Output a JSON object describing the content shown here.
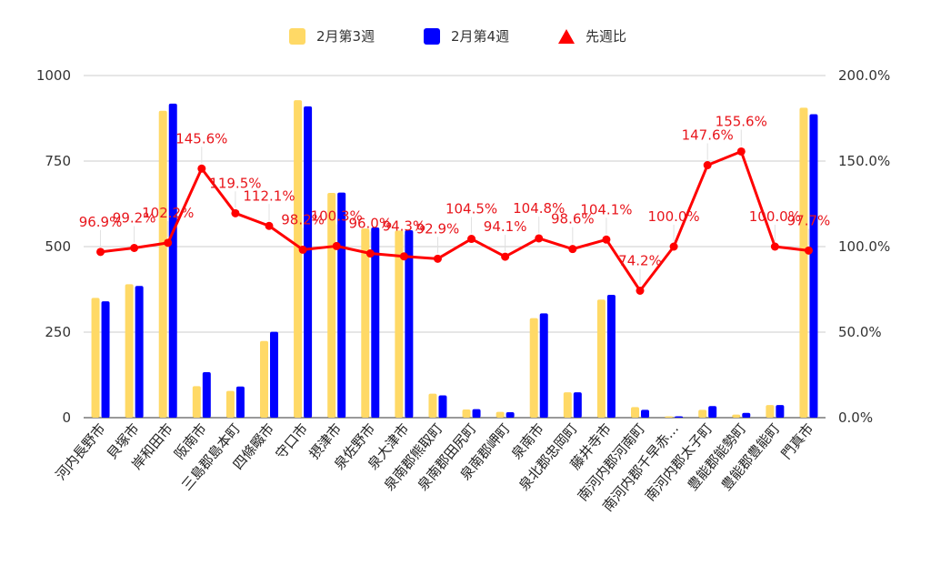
{
  "chart_data": {
    "type": "bar",
    "categories": [
      "河内長野市",
      "貝塚市",
      "岸和田市",
      "阪南市",
      "三島郡島本町",
      "四條畷市",
      "守口市",
      "摂津市",
      "泉佐野市",
      "泉大津市",
      "泉南郡熊取町",
      "泉南郡田尻町",
      "泉南郡岬町",
      "泉南市",
      "泉北郡忠岡町",
      "藤井寺市",
      "南河内郡河南町",
      "南河内郡千早赤…",
      "南河内郡太子町",
      "豊能郡能勢町",
      "豊能郡豊能町",
      "門真市"
    ],
    "series": [
      {
        "name": "2月第3週",
        "axis": "left",
        "color": "#ffd966",
        "values": [
          350,
          390,
          897,
          92,
          78,
          224,
          928,
          657,
          553,
          547,
          70,
          24,
          17,
          291,
          74,
          345,
          31,
          4,
          23,
          9,
          37,
          906
        ]
      },
      {
        "name": "2月第4週",
        "axis": "left",
        "color": "#0000ff",
        "values": [
          340,
          385,
          918,
          133,
          91,
          251,
          910,
          658,
          556,
          548,
          65,
          25,
          16,
          305,
          74,
          359,
          23,
          4,
          34,
          14,
          37,
          887
        ]
      },
      {
        "name": "先週比",
        "axis": "right",
        "type": "line",
        "color": "#ff0000",
        "values": [
          96.9,
          99.2,
          102.2,
          145.6,
          119.5,
          112.1,
          98.2,
          100.3,
          96.0,
          94.3,
          92.9,
          104.5,
          94.1,
          104.8,
          98.6,
          104.1,
          74.2,
          100.0,
          147.6,
          155.6,
          100.0,
          97.7
        ]
      }
    ],
    "data_labels": [
      "96.9%",
      "99.2%",
      "102.2%",
      "145.6%",
      "119.5%",
      "112.1%",
      "98.2%",
      "100.3%",
      "96.0%",
      "94.3%",
      "92.9%",
      "104.5%",
      "94.1%",
      "104.8%",
      "98.6%",
      "104.1%",
      "74.2%",
      "100.0%",
      "147.6%",
      "155.6%",
      "100.0%",
      "97.7%"
    ],
    "y_left": {
      "range": [
        0,
        1000
      ],
      "ticks": [
        "0",
        "250",
        "500",
        "750",
        "1000"
      ]
    },
    "y_right": {
      "range": [
        0,
        200
      ],
      "ticks": [
        "0.0%",
        "50.0%",
        "100.0%",
        "150.0%",
        "200.0%"
      ]
    },
    "legend_position": "top",
    "grid": true
  }
}
